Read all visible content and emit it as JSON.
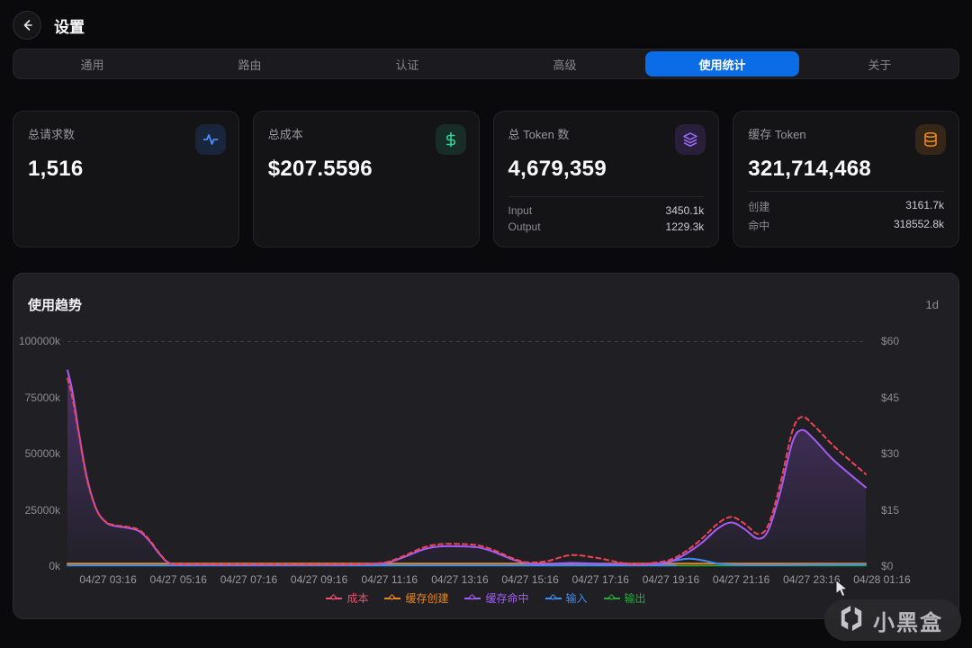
{
  "header": {
    "title": "设置"
  },
  "tabs": [
    {
      "id": "general",
      "label": "通用",
      "active": false
    },
    {
      "id": "routing",
      "label": "路由",
      "active": false
    },
    {
      "id": "auth",
      "label": "认证",
      "active": false
    },
    {
      "id": "advanced",
      "label": "高级",
      "active": false
    },
    {
      "id": "usage-stats",
      "label": "使用统计",
      "active": true
    },
    {
      "id": "about",
      "label": "关于",
      "active": false
    }
  ],
  "active_tab_color": "#0b6ce8",
  "stats": {
    "cards": [
      {
        "label": "总请求数",
        "value": "1,516",
        "icon": "activity-icon",
        "accent": "#4f8af7"
      },
      {
        "label": "总成本",
        "value": "$207.5596",
        "icon": "dollar-icon",
        "accent": "#34d399"
      },
      {
        "label": "总 Token 数",
        "value": "4,679,359",
        "icon": "layers-icon",
        "accent": "#9d6cff",
        "rows": [
          {
            "label": "Input",
            "value": "3450.1k"
          },
          {
            "label": "Output",
            "value": "1229.3k"
          }
        ]
      },
      {
        "label": "缓存 Token",
        "value": "321,714,468",
        "icon": "database-icon",
        "accent": "#ef8c1e",
        "rows": [
          {
            "label": "创建",
            "value": "3161.7k"
          },
          {
            "label": "命中",
            "value": "318552.8k"
          }
        ]
      }
    ]
  },
  "chart": {
    "title": "使用趋势",
    "range": "1d"
  },
  "chart_data": {
    "type": "line",
    "title": "使用趋势",
    "time_range": "1d",
    "left_axis": {
      "unit": "tokens(k)",
      "max": 100000,
      "ticks": [
        "100000k",
        "75000k",
        "50000k",
        "25000k",
        "0k"
      ]
    },
    "right_axis": {
      "unit": "USD",
      "max": 60,
      "ticks": [
        "$60",
        "$45",
        "$30",
        "$15",
        "$0"
      ]
    },
    "x_ticks": [
      "04/27 03:16",
      "04/27 05:16",
      "04/27 07:16",
      "04/27 09:16",
      "04/27 11:16",
      "04/27 13:16",
      "04/27 15:16",
      "04/27 17:16",
      "04/27 19:16",
      "04/27 21:16",
      "04/27 23:16",
      "04/28 01:16"
    ],
    "grid": "top-line-only",
    "legend_position": "bottom",
    "legend": [
      {
        "id": "cost",
        "label": "成本",
        "color": "#e8516d"
      },
      {
        "id": "cache-create",
        "label": "缓存创建",
        "color": "#e8871e"
      },
      {
        "id": "cache-hit",
        "label": "缓存命中",
        "color": "#a55cf6"
      },
      {
        "id": "input",
        "label": "输入",
        "color": "#3f8cf3"
      },
      {
        "id": "output",
        "label": "输出",
        "color": "#27a83b"
      }
    ],
    "series": [
      {
        "id": "cache-create",
        "name": "缓存创建",
        "axis": "left",
        "color": "#e8871e",
        "dash": false,
        "area": false,
        "points": [
          [
            0,
            1100
          ],
          [
            0.5,
            1100
          ],
          [
            1,
            1100
          ]
        ]
      },
      {
        "id": "output",
        "name": "输出",
        "axis": "left",
        "color": "#27a83b",
        "dash": false,
        "area": false,
        "points": [
          [
            0,
            200
          ],
          [
            0.5,
            200
          ],
          [
            1,
            200
          ]
        ]
      },
      {
        "id": "input",
        "name": "输入",
        "axis": "left",
        "color": "#3f8cf3",
        "dash": false,
        "area": false,
        "points": [
          [
            0,
            350
          ],
          [
            0.7,
            350
          ],
          [
            0.735,
            600
          ],
          [
            0.76,
            2400
          ],
          [
            0.778,
            3300
          ],
          [
            0.795,
            2600
          ],
          [
            0.815,
            1100
          ],
          [
            0.84,
            500
          ],
          [
            0.9,
            450
          ],
          [
            1,
            700
          ]
        ]
      },
      {
        "id": "cache-hit",
        "name": "缓存命中",
        "axis": "left",
        "color": "#a55cf6",
        "dash": false,
        "area": true,
        "points": [
          [
            0.0,
            87000
          ],
          [
            0.006,
            78000
          ],
          [
            0.014,
            60000
          ],
          [
            0.024,
            40000
          ],
          [
            0.036,
            25500
          ],
          [
            0.048,
            19500
          ],
          [
            0.06,
            17800
          ],
          [
            0.075,
            17000
          ],
          [
            0.09,
            15500
          ],
          [
            0.103,
            11000
          ],
          [
            0.115,
            5500
          ],
          [
            0.128,
            1200
          ],
          [
            0.15,
            700
          ],
          [
            0.25,
            650
          ],
          [
            0.35,
            650
          ],
          [
            0.395,
            1200
          ],
          [
            0.42,
            3800
          ],
          [
            0.445,
            7300
          ],
          [
            0.465,
            8700
          ],
          [
            0.49,
            8800
          ],
          [
            0.515,
            8300
          ],
          [
            0.535,
            6200
          ],
          [
            0.555,
            3300
          ],
          [
            0.575,
            1300
          ],
          [
            0.6,
            900
          ],
          [
            0.63,
            1400
          ],
          [
            0.66,
            1100
          ],
          [
            0.7,
            700
          ],
          [
            0.73,
            800
          ],
          [
            0.755,
            2000
          ],
          [
            0.775,
            5500
          ],
          [
            0.795,
            10500
          ],
          [
            0.815,
            16800
          ],
          [
            0.832,
            19400
          ],
          [
            0.848,
            16500
          ],
          [
            0.865,
            12200
          ],
          [
            0.878,
            16000
          ],
          [
            0.893,
            33000
          ],
          [
            0.908,
            55000
          ],
          [
            0.92,
            60500
          ],
          [
            0.935,
            56500
          ],
          [
            0.96,
            47000
          ],
          [
            1.0,
            35000
          ]
        ]
      },
      {
        "id": "cost",
        "name": "成本",
        "axis": "right",
        "color": "#ef4455",
        "dash": true,
        "area": false,
        "points": [
          [
            0.0,
            50.0
          ],
          [
            0.006,
            45.0
          ],
          [
            0.014,
            35.5
          ],
          [
            0.024,
            23.5
          ],
          [
            0.036,
            15.2
          ],
          [
            0.048,
            11.8
          ],
          [
            0.06,
            10.9
          ],
          [
            0.075,
            10.5
          ],
          [
            0.09,
            9.6
          ],
          [
            0.103,
            6.9
          ],
          [
            0.115,
            3.5
          ],
          [
            0.128,
            0.8
          ],
          [
            0.15,
            0.5
          ],
          [
            0.25,
            0.45
          ],
          [
            0.35,
            0.45
          ],
          [
            0.395,
            0.9
          ],
          [
            0.42,
            2.6
          ],
          [
            0.445,
            4.9
          ],
          [
            0.465,
            5.8
          ],
          [
            0.49,
            5.9
          ],
          [
            0.515,
            5.5
          ],
          [
            0.535,
            4.2
          ],
          [
            0.555,
            2.3
          ],
          [
            0.575,
            1.0
          ],
          [
            0.6,
            1.3
          ],
          [
            0.63,
            2.9
          ],
          [
            0.66,
            2.3
          ],
          [
            0.7,
            0.7
          ],
          [
            0.73,
            0.8
          ],
          [
            0.755,
            1.7
          ],
          [
            0.775,
            4.0
          ],
          [
            0.795,
            7.4
          ],
          [
            0.815,
            11.4
          ],
          [
            0.832,
            13.1
          ],
          [
            0.848,
            11.3
          ],
          [
            0.865,
            8.6
          ],
          [
            0.878,
            11.0
          ],
          [
            0.893,
            22.0
          ],
          [
            0.908,
            36.0
          ],
          [
            0.92,
            39.8
          ],
          [
            0.935,
            37.5
          ],
          [
            0.96,
            32.0
          ],
          [
            1.0,
            24.5
          ]
        ]
      }
    ]
  },
  "watermark": {
    "text": "小黑盒"
  }
}
